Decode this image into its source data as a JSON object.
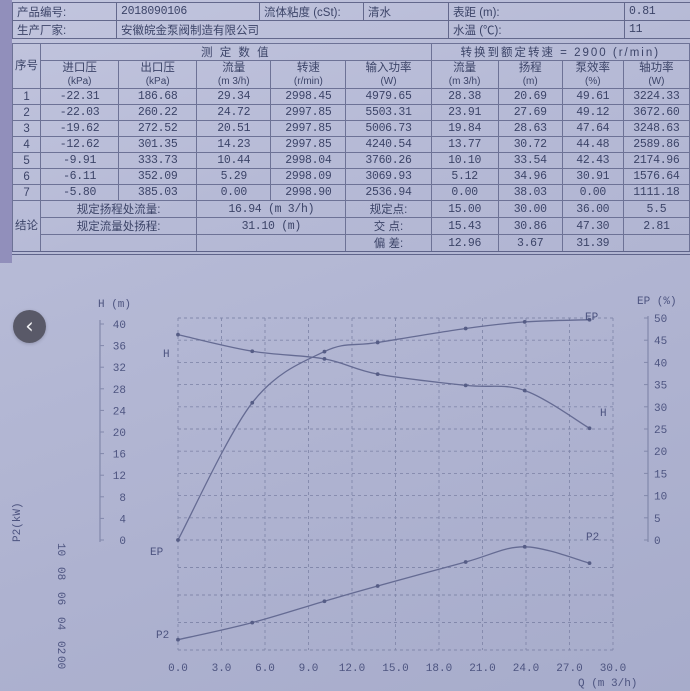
{
  "colors": {
    "paper": "#b4b8d4",
    "ink": "#3c4468",
    "table_line": "#63688c",
    "chart_line": "#656b93",
    "nav_bg": "#52525f"
  },
  "icons": {
    "chevron_left": "‹"
  },
  "viewer": {
    "prev_button": "previous"
  },
  "doc_header": {
    "product_no_label": "产品编号:",
    "product_no": "2018090106",
    "viscosity_label": "流体粘度 (cSt):",
    "viscosity": "清水",
    "gauge_label": "表距 (m):",
    "gauge": "0.81",
    "manufacturer_label": "生产厂家:",
    "manufacturer": "安徽皖金泵阀制造有限公司",
    "water_temp_label": "水温 (℃):",
    "water_temp": "11"
  },
  "table": {
    "serial_header": "序号",
    "group_headers": {
      "measured": "测 定 数 值",
      "converted": "转换到额定转速 = 2900 (r/min)"
    },
    "col_headers": [
      {
        "name": "进口压",
        "unit": "(kPa)"
      },
      {
        "name": "出口压",
        "unit": "(kPa)"
      },
      {
        "name": "流量",
        "unit": "(m 3/h)"
      },
      {
        "name": "转速",
        "unit": "(r/min)"
      },
      {
        "name": "输入功率",
        "unit": "(W)"
      },
      {
        "name": "流量",
        "unit": "(m 3/h)"
      },
      {
        "name": "扬程",
        "unit": "(m)"
      },
      {
        "name": "泵效率",
        "unit": "(%)"
      },
      {
        "name": "轴功率",
        "unit": "(W)"
      }
    ],
    "rows": [
      [
        "1",
        "-22.31",
        "186.68",
        "29.34",
        "2998.45",
        "4979.65",
        "28.38",
        "20.69",
        "49.61",
        "3224.33"
      ],
      [
        "2",
        "-22.03",
        "260.22",
        "24.72",
        "2997.85",
        "5503.31",
        "23.91",
        "27.69",
        "49.12",
        "3672.60"
      ],
      [
        "3",
        "-19.62",
        "272.52",
        "20.51",
        "2997.85",
        "5006.73",
        "19.84",
        "28.63",
        "47.64",
        "3248.63"
      ],
      [
        "4",
        "-12.62",
        "301.35",
        "14.23",
        "2997.85",
        "4240.54",
        "13.77",
        "30.72",
        "44.48",
        "2589.86"
      ],
      [
        "5",
        "-9.91",
        "333.73",
        "10.44",
        "2998.04",
        "3760.26",
        "10.10",
        "33.54",
        "42.43",
        "2174.96"
      ],
      [
        "6",
        "-6.11",
        "352.09",
        "5.29",
        "2998.09",
        "3069.93",
        "5.12",
        "34.96",
        "30.91",
        "1576.64"
      ],
      [
        "7",
        "-5.80",
        "385.03",
        "0.00",
        "2998.90",
        "2536.94",
        "0.00",
        "38.03",
        "0.00",
        "1111.18"
      ]
    ],
    "conclusion": {
      "row_label": "结论",
      "rows": [
        {
          "label": "规定扬程处流量:",
          "value": "16.94 (m 3/h)",
          "point_label": "规定点:",
          "v1": "15.00",
          "v2": "30.00",
          "v3": "36.00",
          "v4": "5.5"
        },
        {
          "label": "规定流量处扬程:",
          "value": "31.10 (m)",
          "point_label": "交 点:",
          "v1": "15.43",
          "v2": "30.86",
          "v3": "47.30",
          "v4": "2.81"
        },
        {
          "label": "",
          "value": "",
          "point_label": "偏 差:",
          "v1": "12.96",
          "v2": "3.67",
          "v3": "31.39",
          "v4": ""
        }
      ]
    }
  },
  "chart_data": {
    "type": "line",
    "title": "",
    "xlabel": "Q (m 3/h)",
    "x": [
      0.0,
      5.12,
      10.1,
      13.77,
      19.84,
      23.91,
      28.38
    ],
    "x_ticks": [
      "0.0",
      "3.0",
      "6.0",
      "9.0",
      "12.0",
      "15.0",
      "18.0",
      "21.0",
      "24.0",
      "27.0",
      "30.0"
    ],
    "xlim": [
      0,
      30
    ],
    "grid": "dashed",
    "legend_position": "curve-end-labels",
    "left_axis": {
      "label": "H (m)",
      "lim": [
        0,
        40
      ],
      "ticks": [
        "40",
        "36",
        "32",
        "28",
        "24",
        "20",
        "16",
        "12",
        "8",
        "4",
        "0"
      ]
    },
    "right_axis": {
      "label": "EP (%)",
      "lim": [
        0,
        50
      ],
      "ticks": [
        "50",
        "45",
        "40",
        "35",
        "30",
        "25",
        "20",
        "15",
        "10",
        "5",
        "0"
      ]
    },
    "lower_left_axis": {
      "label": "P2(kW)",
      "ticks": [
        "10",
        "08",
        "06",
        "04",
        "02",
        "00"
      ]
    },
    "series": [
      {
        "name": "H",
        "unit": "m",
        "values": [
          38.03,
          34.96,
          33.54,
          30.72,
          28.63,
          27.69,
          20.69
        ]
      },
      {
        "name": "EP",
        "unit": "%",
        "values": [
          0.0,
          30.91,
          42.43,
          44.48,
          47.64,
          49.12,
          49.61
        ]
      },
      {
        "name": "P2",
        "unit": "kW",
        "values": [
          1.11,
          1.58,
          2.17,
          2.59,
          3.25,
          3.67,
          3.22
        ]
      }
    ]
  }
}
